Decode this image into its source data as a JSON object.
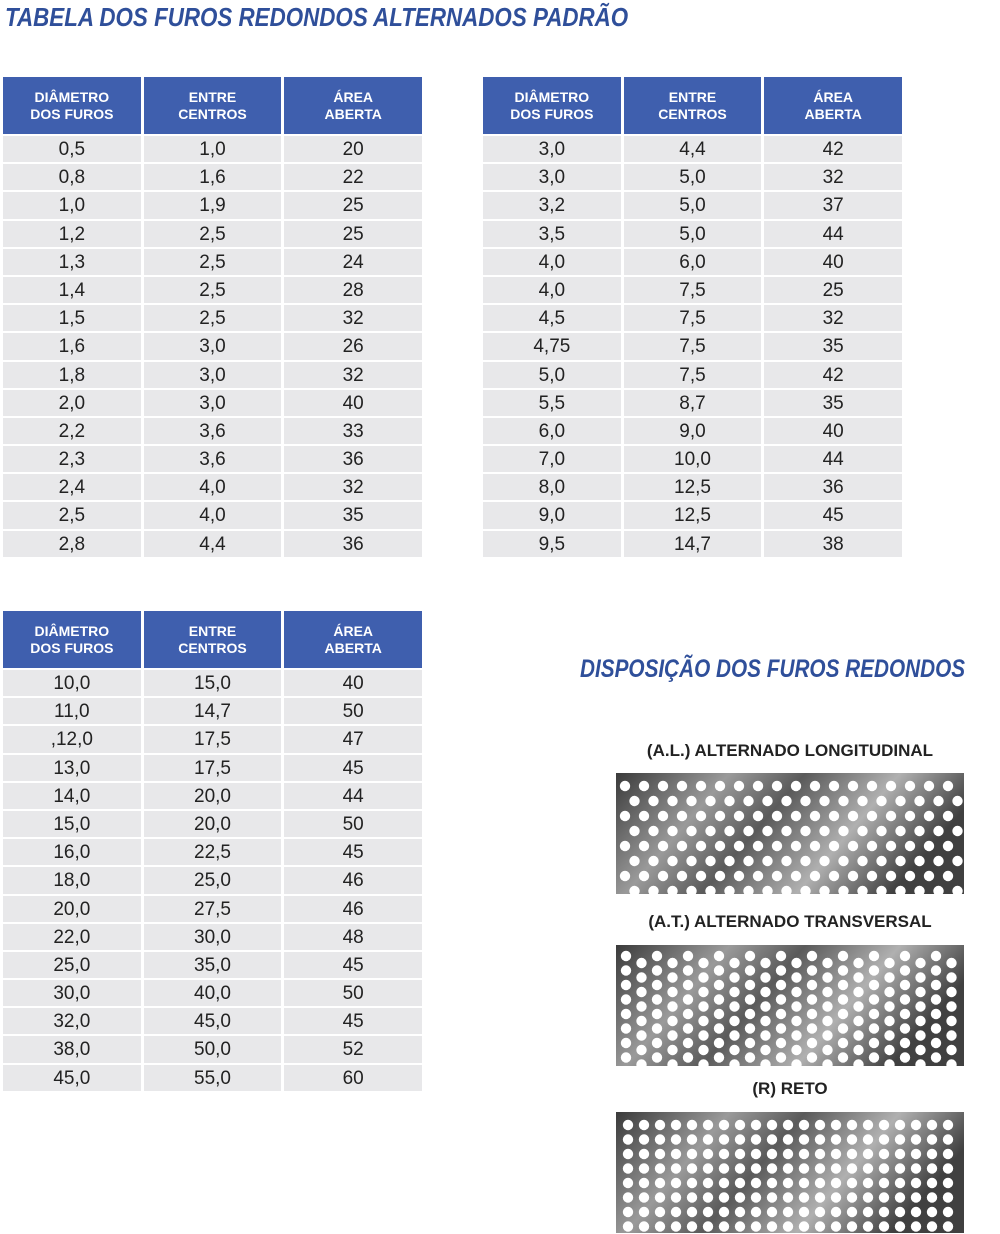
{
  "header": {
    "title": "TABELA DOS FUROS REDONDOS ALTERNADOS PADRÃO"
  },
  "tables": [
    {
      "headers": [
        [
          "DIÂMETRO",
          "DOS FUROS"
        ],
        [
          "ENTRE",
          "CENTROS"
        ],
        [
          "ÁREA",
          "ABERTA"
        ]
      ],
      "rows": [
        [
          "0,5",
          "1,0",
          "20"
        ],
        [
          "0,8",
          "1,6",
          "22"
        ],
        [
          "1,0",
          "1,9",
          "25"
        ],
        [
          "1,2",
          "2,5",
          "25"
        ],
        [
          "1,3",
          "2,5",
          "24"
        ],
        [
          "1,4",
          "2,5",
          "28"
        ],
        [
          "1,5",
          "2,5",
          "32"
        ],
        [
          "1,6",
          "3,0",
          "26"
        ],
        [
          "1,8",
          "3,0",
          "32"
        ],
        [
          "2,0",
          "3,0",
          "40"
        ],
        [
          "2,2",
          "3,6",
          "33"
        ],
        [
          "2,3",
          "3,6",
          "36"
        ],
        [
          "2,4",
          "4,0",
          "32"
        ],
        [
          "2,5",
          "4,0",
          "35"
        ],
        [
          "2,8",
          "4,4",
          "36"
        ]
      ]
    },
    {
      "headers": [
        [
          "DIÂMETRO",
          "DOS FUROS"
        ],
        [
          "ENTRE",
          "CENTROS"
        ],
        [
          "ÁREA",
          "ABERTA"
        ]
      ],
      "rows": [
        [
          "3,0",
          "4,4",
          "42"
        ],
        [
          "3,0",
          "5,0",
          "32"
        ],
        [
          "3,2",
          "5,0",
          "37"
        ],
        [
          "3,5",
          "5,0",
          "44"
        ],
        [
          "4,0",
          "6,0",
          "40"
        ],
        [
          "4,0",
          "7,5",
          "25"
        ],
        [
          "4,5",
          "7,5",
          "32"
        ],
        [
          "4,75",
          "7,5",
          "35"
        ],
        [
          "5,0",
          "7,5",
          "42"
        ],
        [
          "5,5",
          "8,7",
          "35"
        ],
        [
          "6,0",
          "9,0",
          "40"
        ],
        [
          "7,0",
          "10,0",
          "44"
        ],
        [
          "8,0",
          "12,5",
          "36"
        ],
        [
          "9,0",
          "12,5",
          "45"
        ],
        [
          "9,5",
          "14,7",
          "38"
        ]
      ]
    },
    {
      "headers": [
        [
          "DIÂMETRO",
          "DOS FUROS"
        ],
        [
          "ENTRE",
          "CENTROS"
        ],
        [
          "ÁREA",
          "ABERTA"
        ]
      ],
      "rows": [
        [
          "10,0",
          "15,0",
          "40"
        ],
        [
          "11,0",
          "14,7",
          "50"
        ],
        [
          ",12,0",
          "17,5",
          "47"
        ],
        [
          "13,0",
          "17,5",
          "45"
        ],
        [
          "14,0",
          "20,0",
          "44"
        ],
        [
          "15,0",
          "20,0",
          "50"
        ],
        [
          "16,0",
          "22,5",
          "45"
        ],
        [
          "18,0",
          "25,0",
          "46"
        ],
        [
          "20,0",
          "27,5",
          "46"
        ],
        [
          "22,0",
          "30,0",
          "48"
        ],
        [
          "25,0",
          "35,0",
          "45"
        ],
        [
          "30,0",
          "40,0",
          "50"
        ],
        [
          "32,0",
          "45,0",
          "45"
        ],
        [
          "38,0",
          "50,0",
          "52"
        ],
        [
          "45,0",
          "55,0",
          "60"
        ]
      ]
    }
  ],
  "layout_section": {
    "title": "DISPOSIÇÃO DOS FUROS REDONDOS",
    "patterns": [
      {
        "label": "(A.L.) ALTERNADO LONGITUDINAL"
      },
      {
        "label": "(A.T.) ALTERNADO TRANSVERSAL"
      },
      {
        "label": "(R) RETO"
      }
    ]
  }
}
